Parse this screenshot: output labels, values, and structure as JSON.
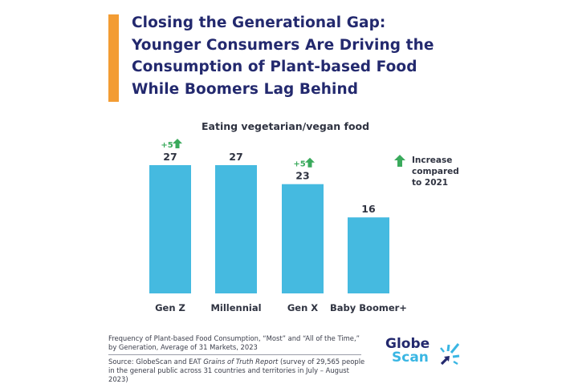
{
  "header": {
    "title_lines": [
      "Closing the Generational Gap:",
      "Younger Consumers Are Driving the",
      "Consumption of Plant-based Food",
      "While Boomers Lag Behind"
    ]
  },
  "colors": {
    "accent": "#f39c33",
    "title": "#23296e",
    "bar": "#45bae0",
    "increase": "#3aaa5c",
    "text": "#2f3341"
  },
  "chart_data": {
    "type": "bar",
    "title": "Eating vegetarian/vegan food",
    "categories": [
      "Gen Z",
      "Millennial",
      "Gen X",
      "Baby Boomer+"
    ],
    "values": [
      27,
      27,
      23,
      16
    ],
    "increase_labels": [
      "+5",
      null,
      "+5",
      null
    ],
    "xlabel": "",
    "ylabel": "",
    "ylim": [
      0,
      27
    ],
    "grid": false,
    "legend": {
      "position": "right",
      "label": "Increase compared to 2021",
      "icon": "green-up-arrow-icon"
    }
  },
  "footnote": "Frequency of Plant-based Food Consumption, “Most” and “All of the Time,” by Generation, Average of 31 Markets, 2023",
  "source": {
    "prefix": "Source: GlobeScan and EAT ",
    "report": "Grains of Truth Report",
    "suffix": " (survey of 29,565 people in the general public across 31 countries and territories in July – August 2023)"
  },
  "logo": {
    "line1": "Globe",
    "line2": "Scan"
  }
}
